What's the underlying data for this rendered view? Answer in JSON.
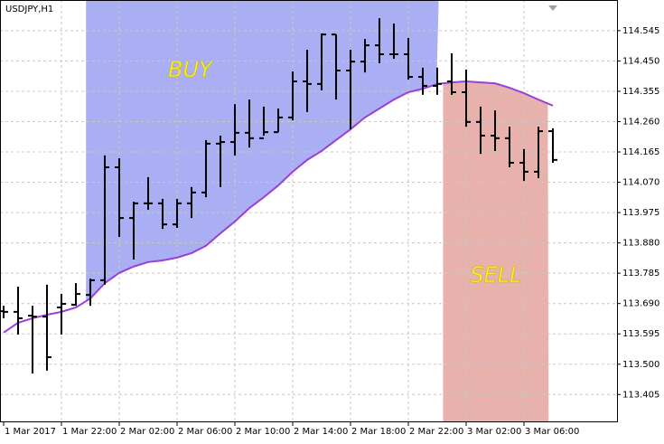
{
  "chart_data": {
    "type": "ohlc",
    "title": "USDJPY,H1",
    "categories": [
      "1 Mar 2017",
      null,
      null,
      null,
      "1 Mar 22:00",
      null,
      null,
      null,
      "2 Mar 02:00",
      null,
      null,
      null,
      "2 Mar 06:00",
      null,
      null,
      null,
      "2 Mar 10:00",
      null,
      null,
      null,
      "2 Mar 14:00",
      null,
      null,
      null,
      "2 Mar 18:00",
      null,
      null,
      null,
      "2 Mar 22:00",
      null,
      null,
      null,
      "3 Mar 02:00",
      null,
      null,
      null,
      "3 Mar 06:00",
      null,
      null
    ],
    "open": [
      113.666,
      113.664,
      113.652,
      113.649,
      113.678,
      113.686,
      113.717,
      113.763,
      114.117,
      113.958,
      114.004,
      114.004,
      113.938,
      114.004,
      114.038,
      114.191,
      114.196,
      114.225,
      114.208,
      114.227,
      114.273,
      114.386,
      114.378,
      114.533,
      114.42,
      114.448,
      114.499,
      114.471,
      114.471,
      114.4,
      114.372,
      114.386,
      114.352,
      114.259,
      114.216,
      114.208,
      114.131,
      114.103,
      114.23
    ],
    "high": [
      113.683,
      113.743,
      113.683,
      113.749,
      113.72,
      113.754,
      113.768,
      114.154,
      114.145,
      114.009,
      114.086,
      114.018,
      114.018,
      114.055,
      114.202,
      114.216,
      114.315,
      114.329,
      114.307,
      114.301,
      114.417,
      114.485,
      114.536,
      114.533,
      114.485,
      114.519,
      114.584,
      114.567,
      114.522,
      114.429,
      114.429,
      114.474,
      114.423,
      114.307,
      114.295,
      114.244,
      114.174,
      114.244,
      114.239
    ],
    "low": [
      113.644,
      113.593,
      113.471,
      113.48,
      113.593,
      113.683,
      113.683,
      113.749,
      113.899,
      113.828,
      113.984,
      113.924,
      113.927,
      113.958,
      114.023,
      114.055,
      114.154,
      114.179,
      114.216,
      114.227,
      114.264,
      114.29,
      114.358,
      114.329,
      114.236,
      114.414,
      114.443,
      114.457,
      114.392,
      114.344,
      114.344,
      114.344,
      114.244,
      114.159,
      114.168,
      114.117,
      114.074,
      114.083,
      114.131
    ],
    "close": [
      113.664,
      113.644,
      113.649,
      113.522,
      113.689,
      113.72,
      113.763,
      114.117,
      113.958,
      114.004,
      114.004,
      113.938,
      114.004,
      114.038,
      114.191,
      114.196,
      114.225,
      114.208,
      114.227,
      114.273,
      114.386,
      114.378,
      114.533,
      114.42,
      114.448,
      114.499,
      114.471,
      114.471,
      114.4,
      114.372,
      114.378,
      114.352,
      114.259,
      114.216,
      114.208,
      114.131,
      114.103,
      114.23,
      114.14
    ],
    "bar_color": "#000000",
    "ma": {
      "color": "#9b3fd8",
      "values": [
        113.599,
        113.63,
        113.644,
        113.655,
        113.664,
        113.678,
        113.706,
        113.754,
        113.786,
        113.806,
        113.82,
        113.825,
        113.834,
        113.848,
        113.871,
        113.91,
        113.947,
        113.989,
        114.023,
        114.06,
        114.103,
        114.14,
        114.168,
        114.202,
        114.236,
        114.273,
        114.301,
        114.329,
        114.352,
        114.363,
        114.378,
        114.383,
        114.386,
        114.383,
        114.38,
        114.366,
        114.349,
        114.329,
        114.31
      ]
    },
    "annotations": [
      {
        "text": "BUY",
        "color": "#aaaef2"
      },
      {
        "text": "SELL",
        "color": "#e9b1ab"
      }
    ],
    "ylim": [
      113.318,
      114.641
    ],
    "yticks": [
      114.545,
      {
        "value": 114.45,
        "label": "114.450"
      },
      114.355,
      {
        "value": 114.26,
        "label": "114.260"
      },
      114.165,
      {
        "value": 114.07,
        "label": "114.070"
      },
      113.975,
      {
        "value": 113.88,
        "label": "113.880"
      },
      113.785,
      {
        "value": 113.69,
        "label": "113.690"
      },
      113.595,
      {
        "value": 113.5,
        "label": "113.500"
      },
      113.405
    ],
    "grid": true
  }
}
